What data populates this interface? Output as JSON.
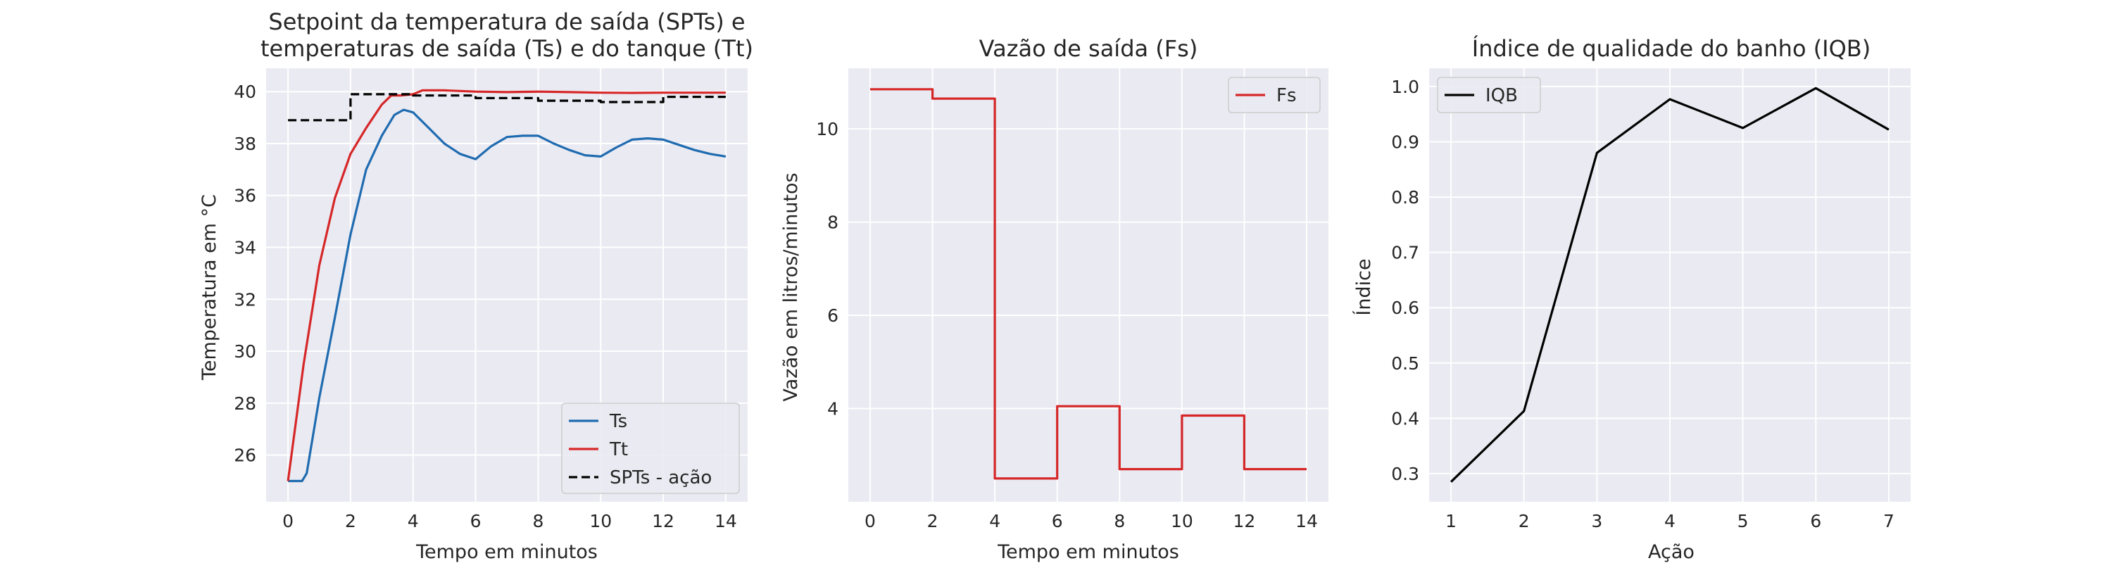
{
  "chart_data": [
    {
      "type": "line",
      "title": [
        "Setpoint da temperatura de saída (SPTs) e",
        "temperaturas de saída (Ts) e do tanque (Tt)"
      ],
      "xlabel": "Tempo em minutos",
      "ylabel": "Temperatura em °C",
      "xlim": [
        -0.7,
        14.7
      ],
      "ylim": [
        24.2,
        40.9
      ],
      "xticks": [
        0,
        2,
        4,
        6,
        8,
        10,
        12,
        14
      ],
      "yticks": [
        26,
        28,
        30,
        32,
        34,
        36,
        38,
        40
      ],
      "grid": true,
      "legend_position": "lower-right",
      "series": [
        {
          "name": "Ts",
          "color": "#1f6bb0",
          "style": "solid",
          "step": false,
          "x": [
            0,
            0.45,
            0.6,
            1.0,
            1.5,
            2.0,
            2.5,
            3.0,
            3.4,
            3.7,
            4.0,
            4.5,
            5.0,
            5.5,
            6.0,
            6.5,
            7.0,
            7.5,
            8.0,
            8.5,
            9.0,
            9.5,
            10.0,
            10.5,
            11.0,
            11.5,
            12.0,
            12.5,
            13.0,
            13.5,
            14.0
          ],
          "y": [
            25.0,
            25.0,
            25.3,
            28.2,
            31.3,
            34.5,
            37.0,
            38.3,
            39.1,
            39.3,
            39.2,
            38.6,
            38.0,
            37.6,
            37.4,
            37.9,
            38.25,
            38.3,
            38.3,
            38.0,
            37.75,
            37.55,
            37.5,
            37.85,
            38.15,
            38.2,
            38.15,
            37.95,
            37.75,
            37.6,
            37.5
          ]
        },
        {
          "name": "Tt",
          "color": "#d62728",
          "style": "solid",
          "step": false,
          "x": [
            0,
            0.5,
            1.0,
            1.5,
            2.0,
            2.5,
            3.0,
            3.3,
            3.6,
            4.0,
            4.3,
            5.0,
            6.0,
            7.0,
            8.0,
            9.0,
            10.0,
            11.0,
            12.0,
            13.0,
            14.0
          ],
          "y": [
            25.0,
            29.5,
            33.3,
            35.9,
            37.6,
            38.6,
            39.5,
            39.85,
            39.85,
            39.9,
            40.05,
            40.05,
            40.0,
            39.98,
            40.0,
            39.98,
            39.96,
            39.95,
            39.96,
            39.96,
            39.96
          ]
        },
        {
          "name": "SPTs - ação",
          "color": "#000000",
          "style": "dashed",
          "step": true,
          "x": [
            0,
            2,
            4,
            6,
            8,
            10,
            12,
            14
          ],
          "y": [
            38.9,
            39.9,
            39.85,
            39.75,
            39.65,
            39.6,
            39.8,
            39.8
          ]
        }
      ]
    },
    {
      "type": "line",
      "title": "Vazão de saída (Fs)",
      "xlabel": "Tempo em minutos",
      "ylabel": "Vazão em litros/minutos",
      "xlim": [
        -0.7,
        14.7
      ],
      "ylim": [
        2.0,
        11.3
      ],
      "xticks": [
        0,
        2,
        4,
        6,
        8,
        10,
        12,
        14
      ],
      "yticks": [
        4,
        6,
        8,
        10
      ],
      "grid": true,
      "legend_position": "upper-right",
      "series": [
        {
          "name": "Fs",
          "color": "#d62728",
          "style": "solid",
          "step": true,
          "x": [
            0,
            2,
            4,
            6,
            8,
            10,
            12,
            14
          ],
          "y": [
            10.85,
            10.65,
            2.5,
            4.05,
            2.7,
            3.85,
            2.7,
            2.7
          ]
        }
      ]
    },
    {
      "type": "line",
      "title": "Índice de qualidade do banho (IQB)",
      "xlabel": "Ação",
      "ylabel": "Índice",
      "xlim": [
        0.7,
        7.3
      ],
      "ylim": [
        0.249,
        1.033
      ],
      "xticks": [
        1,
        2,
        3,
        4,
        5,
        6,
        7
      ],
      "yticks": [
        "0.3",
        "0.4",
        "0.5",
        "0.6",
        "0.7",
        "0.8",
        "0.9",
        "1.0"
      ],
      "grid": true,
      "legend_position": "upper-left",
      "series": [
        {
          "name": "IQB",
          "color": "#000000",
          "style": "solid",
          "step": false,
          "x": [
            1,
            2,
            3,
            4,
            5,
            6,
            7
          ],
          "y": [
            0.285,
            0.413,
            0.88,
            0.977,
            0.925,
            0.997,
            0.922
          ]
        }
      ]
    }
  ]
}
